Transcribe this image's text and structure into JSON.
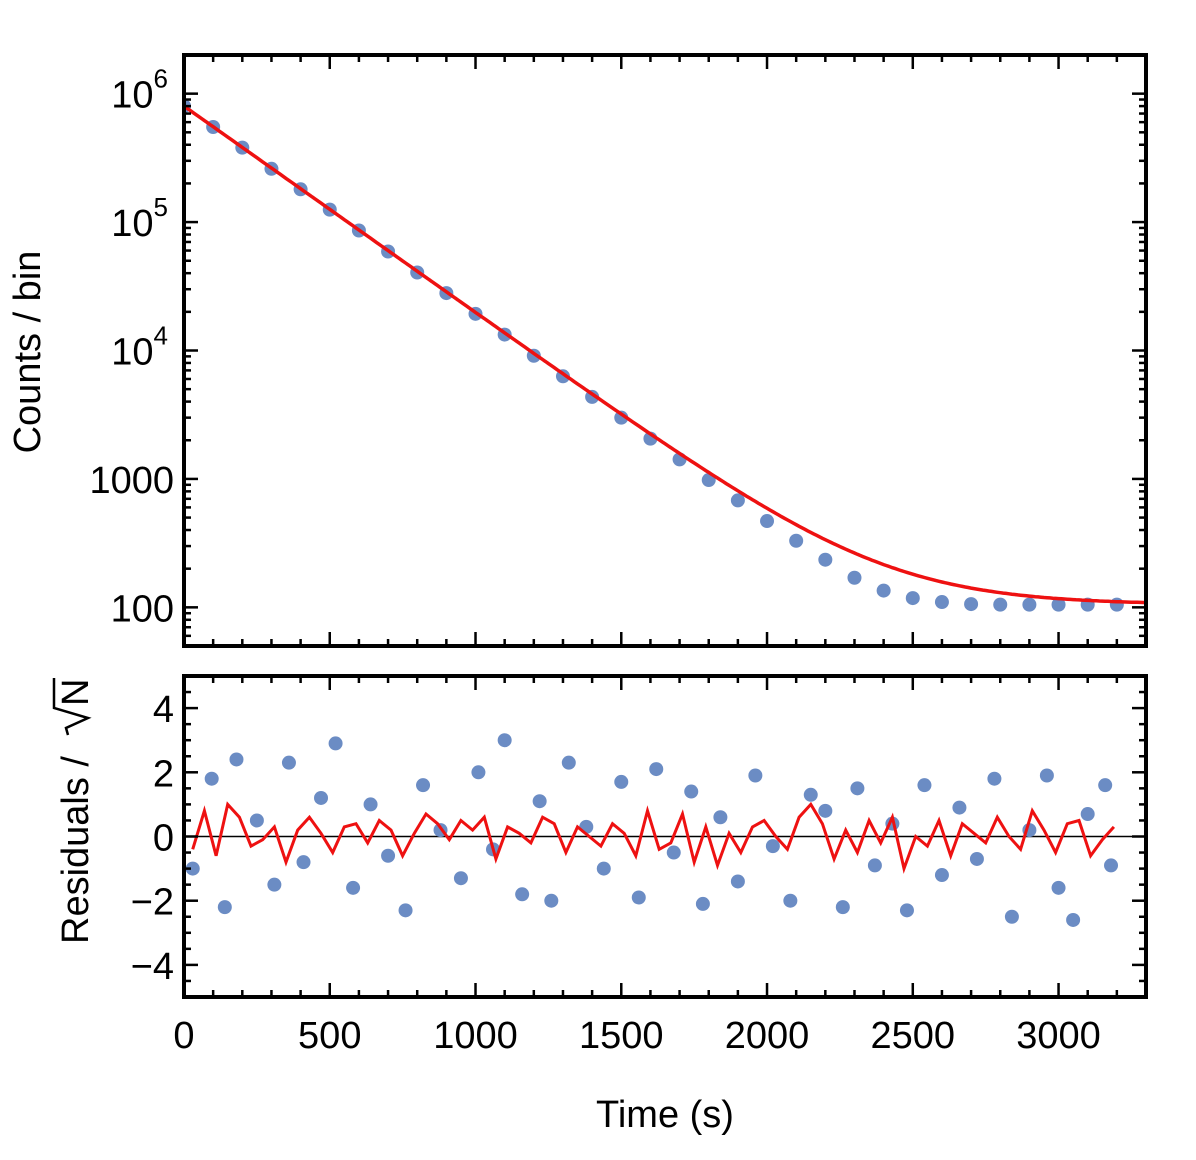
{
  "chart_data": [
    {
      "type": "scatter",
      "panel": "top",
      "ylabel": "Counts / bin",
      "yscale": "log",
      "xlim": [
        0,
        3300
      ],
      "ylim": [
        50,
        2000000
      ],
      "yticks": [
        {
          "value": 1000000,
          "base": "10",
          "exp": "6"
        },
        {
          "value": 100000,
          "base": "10",
          "exp": "5"
        },
        {
          "value": 10000,
          "base": "10",
          "exp": "4"
        },
        {
          "value": 1000,
          "label": "1000"
        },
        {
          "value": 100,
          "label": "100"
        }
      ],
      "series": [
        {
          "kind": "points",
          "color": "#6b8cc4",
          "x": [
            0,
            100,
            200,
            300,
            400,
            500,
            600,
            700,
            800,
            900,
            1000,
            1100,
            1200,
            1300,
            1400,
            1500,
            1600,
            1700,
            1800,
            1900,
            2000,
            2100,
            2200,
            2300,
            2400,
            2500,
            2600,
            2700,
            2800,
            2900,
            3000,
            3100,
            3200
          ],
          "y": [
            800000,
            550000,
            380000,
            260000,
            180000,
            125000,
            86000,
            59000,
            40500,
            28000,
            19300,
            13300,
            9100,
            6300,
            4350,
            3000,
            2060,
            1420,
            980,
            680,
            470,
            330,
            235,
            170,
            135,
            118,
            110,
            106,
            105,
            105,
            105,
            105,
            105
          ]
        },
        {
          "kind": "line",
          "color": "#ee1111",
          "x": [
            0,
            3300
          ],
          "model": {
            "amplitude": 800000,
            "decay_time": 270,
            "background": 105
          }
        }
      ]
    },
    {
      "type": "scatter",
      "panel": "bottom",
      "xlabel": "Time (s)",
      "ylabel_text": "Residuals / ",
      "ylabel_sqrt": "N",
      "xlim": [
        0,
        3300
      ],
      "ylim": [
        -5,
        5
      ],
      "xticks": [
        0,
        500,
        1000,
        1500,
        2000,
        2500,
        3000
      ],
      "yticks": [
        4,
        2,
        0,
        -2,
        -4
      ],
      "ytick_labels": [
        "4",
        "2",
        "0",
        "−2",
        "−4"
      ],
      "series": [
        {
          "kind": "points",
          "color": "#6b8cc4",
          "x": [
            30,
            95,
            140,
            180,
            250,
            310,
            360,
            410,
            470,
            520,
            580,
            640,
            700,
            760,
            820,
            880,
            950,
            1010,
            1060,
            1100,
            1160,
            1220,
            1260,
            1320,
            1380,
            1440,
            1500,
            1560,
            1620,
            1680,
            1740,
            1780,
            1840,
            1900,
            1960,
            2020,
            2080,
            2150,
            2200,
            2260,
            2310,
            2370,
            2430,
            2480,
            2540,
            2600,
            2660,
            2720,
            2780,
            2840,
            2900,
            2960,
            3000,
            3050,
            3100,
            3160,
            3180
          ],
          "y": [
            -1.0,
            1.8,
            -2.2,
            2.4,
            0.5,
            -1.5,
            2.3,
            -0.8,
            1.2,
            2.9,
            -1.6,
            1.0,
            -0.6,
            -2.3,
            1.6,
            0.2,
            -1.3,
            2.0,
            -0.4,
            3.0,
            -1.8,
            1.1,
            -2.0,
            2.3,
            0.3,
            -1.0,
            1.7,
            -1.9,
            2.1,
            -0.5,
            1.4,
            -2.1,
            0.6,
            -1.4,
            1.9,
            -0.3,
            -2.0,
            1.3,
            0.8,
            -2.2,
            1.5,
            -0.9,
            0.4,
            -2.3,
            1.6,
            -1.2,
            0.9,
            -0.7,
            1.8,
            -2.5,
            0.2,
            1.9,
            -1.6,
            -2.6,
            0.7,
            1.6,
            -0.9
          ]
        },
        {
          "kind": "line",
          "color": "#ee1111",
          "x": [
            30,
            70,
            110,
            150,
            190,
            230,
            270,
            310,
            350,
            390,
            430,
            470,
            510,
            550,
            590,
            630,
            670,
            710,
            750,
            790,
            830,
            870,
            910,
            950,
            990,
            1030,
            1070,
            1110,
            1150,
            1190,
            1230,
            1270,
            1310,
            1350,
            1390,
            1430,
            1470,
            1510,
            1550,
            1590,
            1630,
            1670,
            1710,
            1750,
            1790,
            1830,
            1870,
            1910,
            1950,
            1990,
            2030,
            2070,
            2110,
            2150,
            2190,
            2230,
            2270,
            2310,
            2350,
            2390,
            2430,
            2470,
            2510,
            2550,
            2590,
            2630,
            2670,
            2710,
            2750,
            2790,
            2830,
            2870,
            2910,
            2950,
            2990,
            3030,
            3070,
            3110,
            3150,
            3190
          ],
          "y": [
            -0.4,
            0.8,
            -0.6,
            1.0,
            0.6,
            -0.3,
            -0.1,
            0.3,
            -0.8,
            0.2,
            0.6,
            0.1,
            -0.5,
            0.3,
            0.4,
            -0.2,
            0.5,
            0.2,
            -0.6,
            0.1,
            0.7,
            0.4,
            -0.1,
            0.5,
            0.2,
            0.6,
            -0.7,
            0.3,
            0.1,
            -0.2,
            0.6,
            0.4,
            -0.5,
            0.3,
            0.0,
            -0.3,
            0.4,
            0.1,
            -0.6,
            0.8,
            -0.4,
            -0.2,
            0.7,
            -0.8,
            0.3,
            -0.9,
            0.1,
            -0.5,
            0.3,
            0.5,
            0.0,
            -0.4,
            0.6,
            1.0,
            0.4,
            -0.7,
            0.2,
            -0.5,
            0.5,
            -0.2,
            0.6,
            -1.0,
            0.0,
            -0.3,
            0.5,
            -0.6,
            0.4,
            0.1,
            -0.2,
            0.6,
            0.0,
            -0.4,
            0.8,
            0.2,
            -0.5,
            0.4,
            0.5,
            -0.6,
            -0.1,
            0.3
          ]
        },
        {
          "kind": "hline",
          "color": "#000000",
          "y": 0
        }
      ]
    }
  ]
}
